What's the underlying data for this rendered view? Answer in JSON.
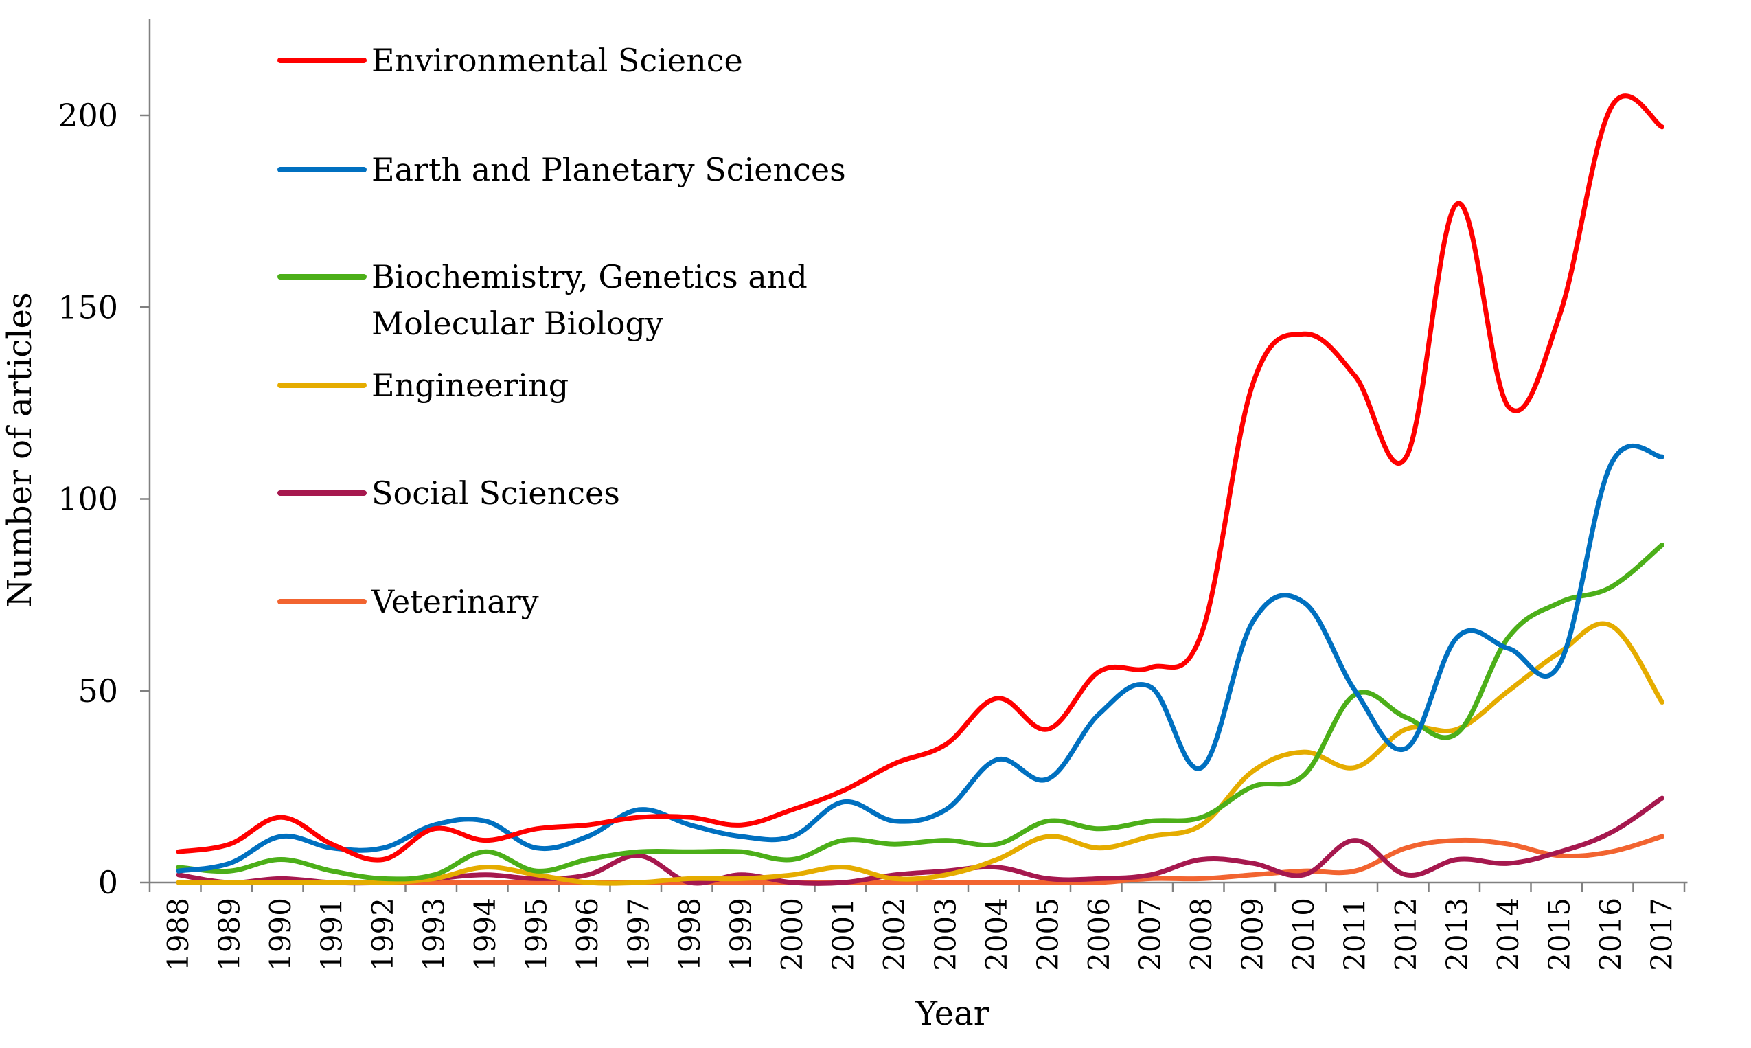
{
  "chart_data": {
    "type": "line",
    "xlabel": "Year",
    "ylabel": "Number of articles",
    "ylim": [
      0,
      225
    ],
    "yticks": [
      0,
      50,
      100,
      150,
      200
    ],
    "y_tick_labels": [
      "0",
      "50",
      "100",
      "150",
      "200"
    ],
    "grid": false,
    "legend_position": "top-left",
    "categories": [
      "1988",
      "1989",
      "1990",
      "1991",
      "1992",
      "1993",
      "1994",
      "1995",
      "1996",
      "1997",
      "1998",
      "1999",
      "2000",
      "2001",
      "2002",
      "2003",
      "2004",
      "2005",
      "2006",
      "2007",
      "2008",
      "2009",
      "2010",
      "2011",
      "2012",
      "2013",
      "2014",
      "2015",
      "2016",
      "2017"
    ],
    "series": [
      {
        "name": "Environmental Science",
        "color": "#ff0000",
        "values": [
          8,
          10,
          17,
          10,
          6,
          14,
          11,
          14,
          15,
          17,
          17,
          15,
          19,
          24,
          31,
          36,
          48,
          40,
          55,
          56,
          65,
          130,
          143,
          132,
          111,
          177,
          124,
          148,
          202,
          197
        ]
      },
      {
        "name": "Earth and Planetary Sciences",
        "color": "#0070c0",
        "values": [
          3,
          5,
          12,
          9,
          9,
          15,
          16,
          9,
          12,
          19,
          15,
          12,
          12,
          21,
          16,
          19,
          32,
          27,
          44,
          51,
          30,
          68,
          73,
          50,
          35,
          64,
          61,
          57,
          109,
          111
        ]
      },
      {
        "name": "Biochemistry, Genetics and Molecular Biology",
        "color": "#4caf19",
        "values": [
          4,
          3,
          6,
          3,
          1,
          2,
          8,
          3,
          6,
          8,
          8,
          8,
          6,
          11,
          10,
          11,
          10,
          16,
          14,
          16,
          17,
          25,
          28,
          49,
          43,
          39,
          64,
          73,
          77,
          88
        ]
      },
      {
        "name": "Engineering",
        "color": "#e5ac00",
        "values": [
          0,
          0,
          0,
          0,
          0,
          1,
          4,
          2,
          0,
          0,
          1,
          1,
          2,
          4,
          1,
          2,
          6,
          12,
          9,
          12,
          15,
          29,
          34,
          30,
          40,
          40,
          50,
          60,
          67,
          47
        ]
      },
      {
        "name": "Social Sciences",
        "color": "#a6184e",
        "values": [
          2,
          0,
          1,
          0,
          0,
          1,
          2,
          1,
          2,
          7,
          0,
          2,
          0,
          0,
          2,
          3,
          4,
          1,
          1,
          2,
          6,
          5,
          2,
          11,
          2,
          6,
          5,
          8,
          13,
          22
        ]
      },
      {
        "name": "Veterinary",
        "color": "#f26430",
        "values": [
          0,
          0,
          0,
          0,
          0,
          0,
          0,
          0,
          0,
          0,
          0,
          0,
          0,
          0,
          0,
          0,
          0,
          0,
          0,
          1,
          1,
          2,
          3,
          3,
          9,
          11,
          10,
          7,
          8,
          12
        ]
      }
    ]
  }
}
